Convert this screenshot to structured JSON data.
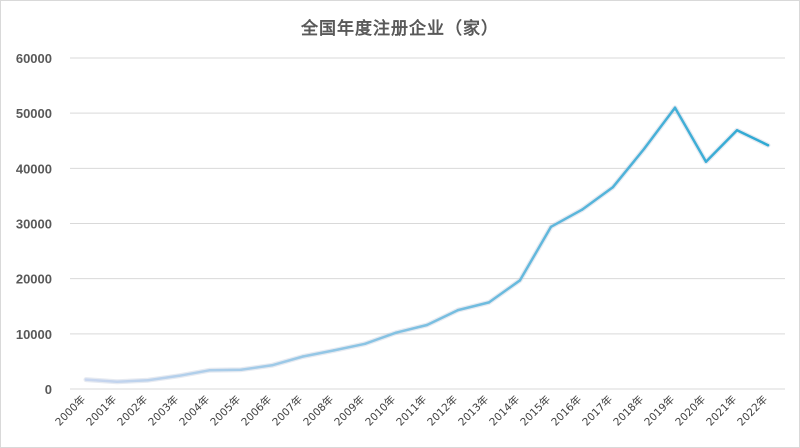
{
  "chart_data": {
    "type": "line",
    "title": "全国年度注册企业（家）",
    "xlabel": "",
    "ylabel": "",
    "ylim": [
      0,
      60000
    ],
    "yticks": [
      "0",
      "10000",
      "20000",
      "30000",
      "40000",
      "50000",
      "60000"
    ],
    "grid": true,
    "legend": "none",
    "categories": [
      "2000年",
      "2001年",
      "2002年",
      "2003年",
      "2004年",
      "2005年",
      "2006年",
      "2007年",
      "2008年",
      "2009年",
      "2010年",
      "2011年",
      "2012年",
      "2013年",
      "2014年",
      "2015年",
      "2016年",
      "2017年",
      "2018年",
      "2019年",
      "2020年",
      "2021年",
      "2022年"
    ],
    "series": [
      {
        "values": [
          1700,
          1300,
          1600,
          2400,
          3400,
          3500,
          4300,
          5900,
          7000,
          8200,
          10200,
          11600,
          14300,
          15700,
          19700,
          29400,
          32500,
          36600,
          43500,
          51000,
          41200,
          46900,
          44200
        ],
        "color_start": "#c9d6ef",
        "color_end": "#2ea9d3"
      }
    ]
  }
}
